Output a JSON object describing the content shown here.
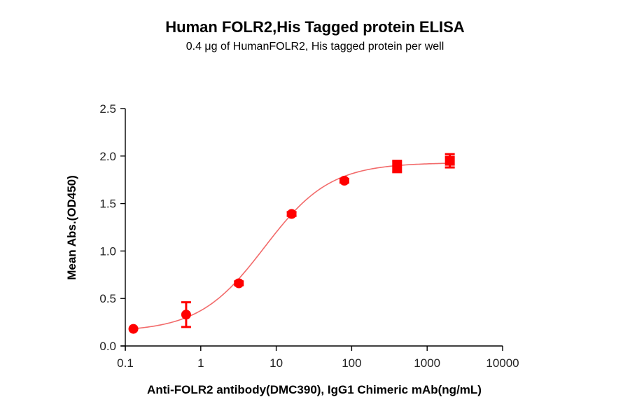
{
  "header": {
    "title": "Human FOLR2,His Tagged protein ELISA",
    "subtitle": "0.4 μg of HumanFOLR2, His tagged protein per well"
  },
  "colors": {
    "series": "#ff0000",
    "curve": "#f26b6b",
    "axis": "#000000"
  },
  "chart_data": {
    "type": "scatter",
    "title": "Human FOLR2,His Tagged protein ELISA",
    "subtitle": "0.4 μg of HumanFOLR2, His tagged protein per well",
    "xlabel": "Anti-FOLR2 antibody(DMC390), IgG1 Chimeric mAb(ng/mL)",
    "ylabel": "Mean Abs.(OD450)",
    "xscale": "log",
    "xlim": [
      0.1,
      10000
    ],
    "ylim": [
      0.0,
      2.5
    ],
    "xticks": [
      "0.1",
      "1",
      "10",
      "100",
      "1000",
      "10000"
    ],
    "yticks": [
      "0.0",
      "0.5",
      "1.0",
      "1.5",
      "2.0",
      "2.5"
    ],
    "grid": false,
    "legend": null,
    "series": [
      {
        "name": "Anti-FOLR2 antibody(DMC390)",
        "x": [
          0.128,
          0.64,
          3.2,
          16,
          80,
          400,
          2000
        ],
        "y": [
          0.18,
          0.33,
          0.66,
          1.39,
          1.74,
          1.89,
          1.95
        ],
        "y_err_low": [
          0.17,
          0.2,
          0.64,
          1.37,
          1.72,
          1.83,
          1.88
        ],
        "y_err_high": [
          0.19,
          0.46,
          0.68,
          1.41,
          1.76,
          1.95,
          2.02
        ],
        "markers": [
          "circle",
          "circle",
          "circle",
          "circle",
          "circle",
          "square",
          "square"
        ]
      }
    ],
    "fit": {
      "model": "4PL",
      "bottom": 0.15,
      "top": 1.93,
      "ec50": 7,
      "hill": 1.0,
      "x_range": [
        0.128,
        2000
      ]
    }
  }
}
